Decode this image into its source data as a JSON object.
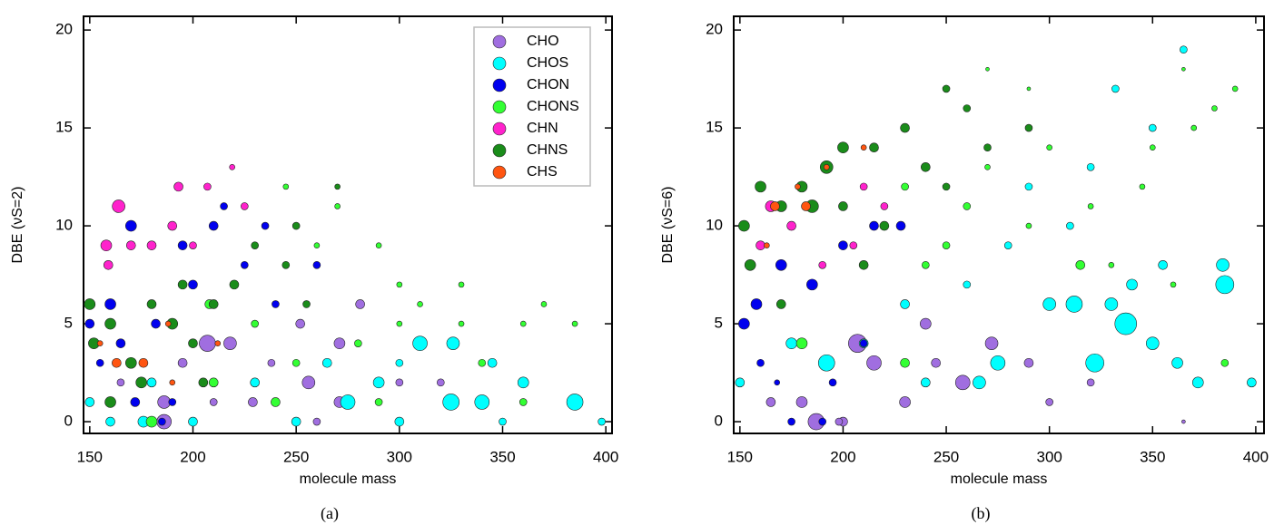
{
  "chart_data": [
    {
      "type": "scatter",
      "caption": "(a)",
      "xlabel": "molecule mass",
      "ylabel": "DBE (νS=2)",
      "xlim": [
        147,
        403
      ],
      "ylim": [
        -0.6,
        20.7
      ],
      "xticks": [
        150,
        200,
        250,
        300,
        350,
        400
      ],
      "yticks": [
        0,
        5,
        10,
        15,
        20
      ],
      "legend": "upper right",
      "series": [
        {
          "name": "CHO",
          "color": "#a06ee0",
          "x": [
            186,
            207,
            218,
            256,
            271,
            271,
            186,
            229,
            252,
            281,
            300,
            195,
            238,
            165,
            320,
            210,
            260
          ],
          "values": [
            0,
            4,
            4,
            2,
            4,
            1,
            1,
            1,
            5,
            6,
            2,
            3,
            3,
            2,
            2,
            1,
            0
          ],
          "sizes": [
            8,
            9,
            7,
            7,
            6,
            6,
            7,
            5,
            5,
            5,
            4,
            5,
            4,
            4,
            4,
            4,
            4
          ]
        },
        {
          "name": "CHOS",
          "color": "#00ffff",
          "x": [
            176,
            160,
            200,
            250,
            300,
            350,
            398,
            385,
            325,
            340,
            275,
            290,
            310,
            326,
            345,
            360,
            230,
            180,
            150,
            300,
            265
          ],
          "values": [
            0,
            0,
            0,
            0,
            0,
            0,
            0,
            1,
            1,
            1,
            1,
            2,
            4,
            4,
            3,
            2,
            2,
            2,
            1,
            3,
            3
          ],
          "sizes": [
            6,
            5,
            5,
            5,
            5,
            4,
            4,
            9,
            9,
            8,
            8,
            6,
            8,
            7,
            5,
            6,
            5,
            5,
            5,
            4,
            5
          ]
        },
        {
          "name": "CHON",
          "color": "#0000ee",
          "x": [
            172,
            190,
            150,
            160,
            165,
            182,
            170,
            195,
            210,
            225,
            240,
            200,
            155,
            185,
            215,
            235,
            260
          ],
          "values": [
            1,
            1,
            5,
            6,
            4,
            5,
            10,
            9,
            10,
            8,
            6,
            7,
            3,
            0,
            11,
            10,
            8
          ],
          "sizes": [
            5,
            4,
            5,
            6,
            5,
            5,
            6,
            5,
            5,
            4,
            4,
            5,
            4,
            4,
            4,
            4,
            4
          ]
        },
        {
          "name": "CHONS",
          "color": "#33ff33",
          "x": [
            180,
            210,
            250,
            280,
            300,
            330,
            360,
            385,
            300,
            270,
            260,
            245,
            290,
            330,
            310,
            340,
            370,
            230,
            240,
            290,
            360,
            220,
            208
          ],
          "values": [
            0,
            2,
            3,
            4,
            5,
            5,
            5,
            5,
            7,
            11,
            9,
            12,
            9,
            7,
            6,
            3,
            6,
            5,
            1,
            1,
            1,
            7,
            6
          ],
          "sizes": [
            6,
            5,
            4,
            4,
            3,
            3,
            3,
            3,
            3,
            3,
            3,
            3,
            3,
            3,
            3,
            4,
            3,
            4,
            5,
            4,
            4,
            4,
            5
          ]
        },
        {
          "name": "CHN",
          "color": "#ff22cc",
          "x": [
            164,
            158,
            170,
            190,
            193,
            159,
            180,
            219,
            207,
            225,
            200
          ],
          "values": [
            11,
            9,
            9,
            10,
            12,
            8,
            9,
            13,
            12,
            11,
            9
          ],
          "sizes": [
            7,
            6,
            5,
            5,
            5,
            5,
            5,
            3,
            4,
            4,
            4
          ]
        },
        {
          "name": "CHNS",
          "color": "#1a8c1a",
          "x": [
            150,
            152,
            170,
            160,
            190,
            200,
            180,
            210,
            175,
            195,
            220,
            230,
            245,
            160,
            205,
            255,
            270,
            250
          ],
          "values": [
            6,
            4,
            3,
            5,
            5,
            4,
            6,
            6,
            2,
            7,
            7,
            9,
            8,
            1,
            2,
            6,
            12,
            10
          ],
          "sizes": [
            6,
            6,
            6,
            6,
            6,
            5,
            5,
            5,
            6,
            5,
            5,
            4,
            4,
            6,
            5,
            4,
            3,
            4
          ]
        },
        {
          "name": "CHS",
          "color": "#ff5511",
          "x": [
            163,
            176,
            155,
            188,
            212,
            190
          ],
          "values": [
            3,
            3,
            4,
            5,
            4,
            2
          ],
          "sizes": [
            5,
            5,
            3,
            3,
            3,
            3
          ]
        }
      ]
    },
    {
      "type": "scatter",
      "caption": "(b)",
      "xlabel": "molecule mass",
      "ylabel": "DBE (νS=6)",
      "xlim": [
        147,
        404
      ],
      "ylim": [
        -0.6,
        20.7
      ],
      "xticks": [
        150,
        200,
        250,
        300,
        350,
        400
      ],
      "yticks": [
        0,
        5,
        10,
        15,
        20
      ],
      "series": [
        {
          "color": "#a06ee0",
          "x": [
            187,
            207,
            215,
            258,
            272,
            230,
            165,
            180,
            200,
            240,
            290,
            245,
            300,
            198,
            365,
            320
          ],
          "values": [
            0,
            4,
            3,
            2,
            4,
            1,
            1,
            1,
            0,
            5,
            3,
            3,
            1,
            0,
            0,
            2
          ],
          "sizes": [
            9,
            10,
            8,
            8,
            7,
            6,
            5,
            6,
            5,
            6,
            5,
            5,
            4,
            4,
            2,
            4
          ]
        },
        {
          "color": "#00ffff",
          "x": [
            337,
            322,
            312,
            385,
            384,
            372,
            398,
            330,
            350,
            362,
            300,
            275,
            266,
            240,
            192,
            175,
            150,
            365,
            332,
            350,
            320,
            290,
            280,
            310,
            260,
            230,
            210,
            355,
            340
          ],
          "values": [
            5,
            3,
            6,
            7,
            8,
            2,
            2,
            6,
            4,
            3,
            6,
            3,
            2,
            2,
            3,
            4,
            2,
            19,
            17,
            15,
            13,
            12,
            9,
            10,
            7,
            6,
            4,
            8,
            7
          ],
          "sizes": [
            12,
            10,
            9,
            10,
            7,
            6,
            5,
            7,
            7,
            6,
            7,
            8,
            7,
            5,
            9,
            6,
            5,
            4,
            4,
            4,
            4,
            4,
            4,
            4,
            4,
            5,
            5,
            5,
            6
          ]
        },
        {
          "color": "#0000ee",
          "x": [
            158,
            152,
            170,
            185,
            200,
            215,
            228,
            168,
            190,
            175,
            210,
            160,
            195
          ],
          "values": [
            6,
            5,
            8,
            7,
            9,
            10,
            10,
            2,
            0,
            0,
            4,
            3,
            2
          ],
          "sizes": [
            6,
            6,
            6,
            6,
            5,
            5,
            5,
            3,
            4,
            4,
            4,
            4,
            4
          ]
        },
        {
          "color": "#33ff33",
          "x": [
            230,
            260,
            290,
            320,
            350,
            370,
            390,
            380,
            300,
            270,
            250,
            330,
            345,
            315,
            230,
            360,
            180,
            385,
            240,
            270,
            290,
            365
          ],
          "values": [
            12,
            11,
            10,
            11,
            14,
            15,
            17,
            16,
            14,
            13,
            9,
            8,
            12,
            8,
            3,
            7,
            4,
            3,
            8,
            18,
            17,
            18
          ],
          "sizes": [
            4,
            4,
            3,
            3,
            3,
            3,
            3,
            3,
            3,
            3,
            4,
            3,
            3,
            5,
            5,
            3,
            6,
            4,
            4,
            2,
            2,
            2
          ]
        },
        {
          "color": "#ff22cc",
          "x": [
            165,
            160,
            175,
            205,
            210,
            190,
            220
          ],
          "values": [
            11,
            9,
            10,
            9,
            12,
            8,
            11
          ],
          "sizes": [
            6,
            5,
            5,
            4,
            4,
            4,
            4
          ]
        },
        {
          "color": "#1a8c1a",
          "x": [
            152,
            160,
            180,
            192,
            200,
            215,
            230,
            250,
            260,
            170,
            185,
            155,
            200,
            240,
            270,
            290,
            220,
            170,
            210,
            250
          ],
          "values": [
            10,
            12,
            12,
            13,
            14,
            14,
            15,
            17,
            16,
            11,
            11,
            8,
            11,
            13,
            14,
            15,
            10,
            6,
            8,
            12
          ],
          "sizes": [
            6,
            6,
            6,
            7,
            6,
            5,
            5,
            4,
            4,
            6,
            7,
            6,
            5,
            5,
            4,
            4,
            5,
            5,
            5,
            4
          ]
        },
        {
          "color": "#ff5511",
          "x": [
            167,
            182,
            192,
            163,
            210,
            178
          ],
          "values": [
            11,
            11,
            13,
            9,
            14,
            12
          ],
          "sizes": [
            5,
            5,
            3,
            3,
            3,
            3
          ]
        }
      ]
    }
  ]
}
